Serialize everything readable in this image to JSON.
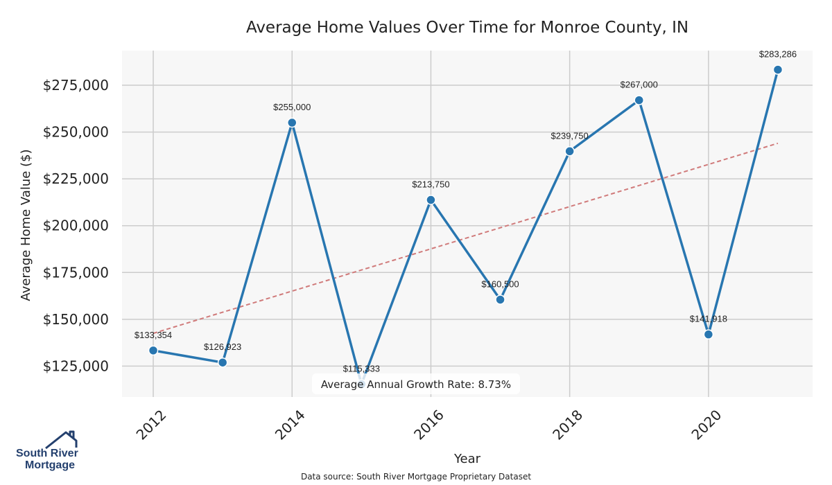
{
  "chart_data": {
    "type": "line",
    "title": "Average Home Values Over Time for Monroe County, IN",
    "xlabel": "Year",
    "ylabel": "Average Home Value ($)",
    "x": [
      2012,
      2013,
      2014,
      2015,
      2016,
      2017,
      2018,
      2019,
      2020,
      2021
    ],
    "series": [
      {
        "values": [
          133354,
          126923,
          255000,
          115333,
          213750,
          160500,
          239750,
          267000,
          141918,
          283286
        ],
        "labels": [
          "$133,354",
          "$126,923",
          "$255,000",
          "$115,333",
          "$213,750",
          "$160,500",
          "$239,750",
          "$267,000",
          "$141,918",
          "$283,286"
        ]
      }
    ],
    "trend_line": {
      "from": [
        2012,
        142500
      ],
      "to": [
        2021,
        244000
      ]
    },
    "xticks": [
      2012,
      2014,
      2016,
      2018,
      2020
    ],
    "xtick_labels": [
      "2012",
      "2014",
      "2016",
      "2018",
      "2020"
    ],
    "yticks": [
      125000,
      150000,
      175000,
      200000,
      225000,
      250000,
      275000
    ],
    "ytick_labels": [
      "$125,000",
      "$150,000",
      "$175,000",
      "$200,000",
      "$225,000",
      "$250,000",
      "$275,000"
    ],
    "xlim": [
      2011.55,
      2021.5
    ],
    "ylim": [
      108500,
      293500
    ],
    "grid": true,
    "annotation": "Average Annual Growth Rate: 8.73%",
    "source": "Data source: South River Mortgage Proprietary Dataset",
    "colors": {
      "line": "#2876b0",
      "trend": "#d07a7a",
      "grid": "#cccccc",
      "plot_bg": "#f7f7f7"
    }
  },
  "logo": {
    "line1": "South River",
    "line2": "Mortgage",
    "icon": "house-roof-icon"
  }
}
